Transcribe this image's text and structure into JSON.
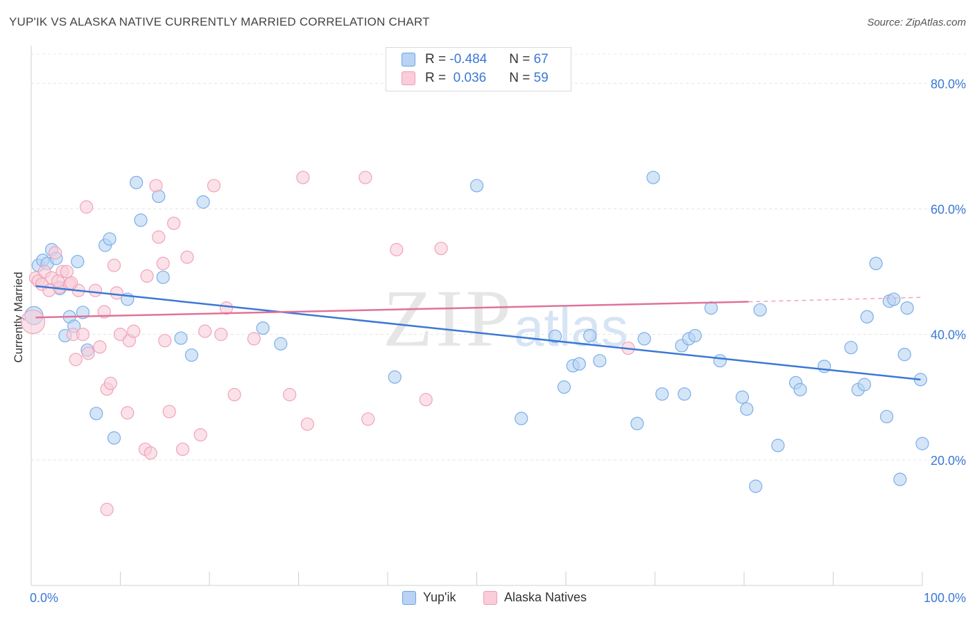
{
  "title": "YUP'IK VS ALASKA NATIVE CURRENTLY MARRIED CORRELATION CHART",
  "source": "Source: ZipAtlas.com",
  "watermark": {
    "zip": "ZIP",
    "atlas": "atlas"
  },
  "legend": {
    "rows": [
      {
        "r_label": "R =",
        "r_value": "-0.484",
        "n_label": "N =",
        "n_value": "67",
        "color": "#6ba3e6",
        "fill": "#b8d3f3"
      },
      {
        "r_label": "R =",
        "r_value": " 0.036",
        "n_label": "N =",
        "n_value": "59",
        "color": "#f09bb5",
        "fill": "#f9cdd9"
      }
    ]
  },
  "bottom_legend": [
    "Yup'ik",
    "Alaska Natives"
  ],
  "chart_data": {
    "type": "scatter",
    "title": "YUP'IK VS ALASKA NATIVE CURRENTLY MARRIED CORRELATION CHART",
    "xlabel": "",
    "ylabel": "Currently Married",
    "xlim": [
      0,
      100
    ],
    "ylim": [
      0,
      85
    ],
    "x_tick_labels": [
      "0.0%",
      "100.0%"
    ],
    "y_ticks": [
      20,
      40,
      60,
      80
    ],
    "y_tick_labels": [
      "20.0%",
      "40.0%",
      "60.0%",
      "80.0%"
    ],
    "grid": true,
    "legend_position": "top-center",
    "series": [
      {
        "name": "Yup'ik",
        "color": "#3a78d6",
        "fill": "#b8d3f3",
        "points": [
          [
            0.3,
            43.0
          ],
          [
            0.8,
            51.0
          ],
          [
            1.3,
            51.8
          ],
          [
            1.8,
            51.3
          ],
          [
            2.3,
            53.5
          ],
          [
            2.8,
            52.1
          ],
          [
            3.2,
            47.3
          ],
          [
            3.8,
            39.8
          ],
          [
            4.3,
            42.8
          ],
          [
            4.8,
            41.3
          ],
          [
            5.2,
            51.6
          ],
          [
            5.8,
            43.5
          ],
          [
            6.3,
            37.5
          ],
          [
            7.3,
            27.4
          ],
          [
            8.3,
            54.2
          ],
          [
            8.8,
            55.2
          ],
          [
            9.3,
            23.5
          ],
          [
            10.8,
            45.6
          ],
          [
            11.8,
            64.2
          ],
          [
            12.3,
            58.2
          ],
          [
            14.3,
            62.0
          ],
          [
            14.8,
            49.1
          ],
          [
            16.8,
            39.4
          ],
          [
            18.0,
            36.7
          ],
          [
            19.3,
            61.1
          ],
          [
            26.0,
            41.0
          ],
          [
            28.0,
            38.5
          ],
          [
            40.8,
            33.2
          ],
          [
            50.0,
            63.7
          ],
          [
            55.0,
            26.6
          ],
          [
            58.8,
            39.7
          ],
          [
            59.8,
            31.6
          ],
          [
            60.8,
            35.0
          ],
          [
            61.5,
            35.3
          ],
          [
            62.7,
            39.8
          ],
          [
            63.8,
            35.8
          ],
          [
            68.0,
            25.8
          ],
          [
            68.8,
            39.3
          ],
          [
            69.8,
            65.0
          ],
          [
            70.8,
            30.5
          ],
          [
            73.0,
            38.2
          ],
          [
            73.3,
            30.5
          ],
          [
            73.8,
            39.3
          ],
          [
            74.5,
            39.8
          ],
          [
            76.3,
            44.2
          ],
          [
            77.3,
            35.8
          ],
          [
            79.8,
            30.0
          ],
          [
            80.3,
            28.1
          ],
          [
            81.3,
            15.8
          ],
          [
            81.8,
            43.9
          ],
          [
            83.8,
            22.3
          ],
          [
            85.8,
            32.3
          ],
          [
            86.3,
            31.2
          ],
          [
            89.0,
            34.9
          ],
          [
            92.0,
            37.9
          ],
          [
            92.8,
            31.2
          ],
          [
            93.5,
            32.0
          ],
          [
            93.8,
            42.8
          ],
          [
            94.8,
            51.3
          ],
          [
            96.0,
            26.9
          ],
          [
            96.3,
            45.3
          ],
          [
            96.8,
            45.6
          ],
          [
            97.5,
            16.9
          ],
          [
            98.0,
            36.8
          ],
          [
            98.3,
            44.2
          ],
          [
            99.8,
            32.8
          ],
          [
            100.0,
            22.6
          ]
        ],
        "trend": [
          [
            0.5,
            47.7
          ],
          [
            99.8,
            32.8
          ]
        ]
      },
      {
        "name": "Alaska Natives",
        "color": "#e0729a",
        "fill": "#f9cdd9",
        "points": [
          [
            0.2,
            42.0
          ],
          [
            0.5,
            49.0
          ],
          [
            0.8,
            48.5
          ],
          [
            1.2,
            48.0
          ],
          [
            1.5,
            50.0
          ],
          [
            2.0,
            47.0
          ],
          [
            2.3,
            49.0
          ],
          [
            2.7,
            53.0
          ],
          [
            3.2,
            47.5
          ],
          [
            3.5,
            50.0
          ],
          [
            4.0,
            50.0
          ],
          [
            4.3,
            48.0
          ],
          [
            4.7,
            40.0
          ],
          [
            5.0,
            36.0
          ],
          [
            5.3,
            47.0
          ],
          [
            5.8,
            40.0
          ],
          [
            6.2,
            60.3
          ],
          [
            6.4,
            37.0
          ],
          [
            7.2,
            47.0
          ],
          [
            7.7,
            38.0
          ],
          [
            8.2,
            43.6
          ],
          [
            8.5,
            31.3
          ],
          [
            8.9,
            32.2
          ],
          [
            9.3,
            51.0
          ],
          [
            9.6,
            46.6
          ],
          [
            10.0,
            40.0
          ],
          [
            10.8,
            27.5
          ],
          [
            11.0,
            39.0
          ],
          [
            11.5,
            40.5
          ],
          [
            12.8,
            21.7
          ],
          [
            13.0,
            49.3
          ],
          [
            13.4,
            21.1
          ],
          [
            14.0,
            63.7
          ],
          [
            14.3,
            55.5
          ],
          [
            14.8,
            51.3
          ],
          [
            15.0,
            39.0
          ],
          [
            15.5,
            27.7
          ],
          [
            16.0,
            57.7
          ],
          [
            17.0,
            21.7
          ],
          [
            17.5,
            52.3
          ],
          [
            19.0,
            24.0
          ],
          [
            19.5,
            40.5
          ],
          [
            20.5,
            63.7
          ],
          [
            21.3,
            40.0
          ],
          [
            21.9,
            44.2
          ],
          [
            22.8,
            30.4
          ],
          [
            25.0,
            39.3
          ],
          [
            29.0,
            30.4
          ],
          [
            30.5,
            65.0
          ],
          [
            31.0,
            25.7
          ],
          [
            37.5,
            65.0
          ],
          [
            37.8,
            26.5
          ],
          [
            41.0,
            53.5
          ],
          [
            44.3,
            29.6
          ],
          [
            46.0,
            53.7
          ],
          [
            67.0,
            37.8
          ],
          [
            8.5,
            12.1
          ],
          [
            3.0,
            48.5
          ],
          [
            4.5,
            48.2
          ]
        ],
        "trend": [
          [
            0.5,
            42.7
          ],
          [
            80.5,
            45.2
          ]
        ],
        "trend_dashed": [
          [
            80.5,
            45.2
          ],
          [
            100,
            45.9
          ]
        ]
      }
    ]
  }
}
